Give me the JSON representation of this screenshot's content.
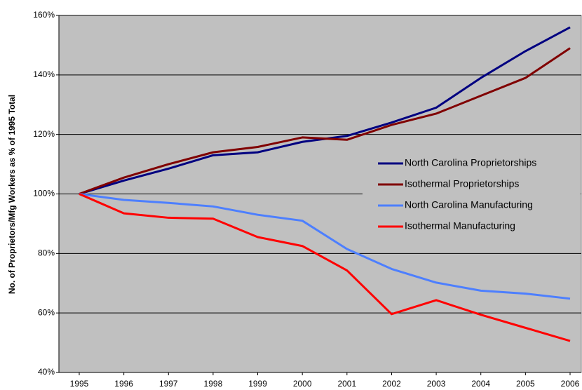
{
  "chart_data": {
    "type": "line",
    "y_label": "No. of Proprietors/Mfg Workers as % of 1995 Total",
    "categories": [
      "1995",
      "1996",
      "1997",
      "1998",
      "1999",
      "2000",
      "2001",
      "2002",
      "2003",
      "2004",
      "2005",
      "2006"
    ],
    "series": [
      {
        "name": "North Carolina Proprietorships",
        "color": "#000080",
        "values": [
          100,
          104.5,
          108.5,
          113,
          114,
          117.5,
          119.5,
          124,
          129,
          139,
          148,
          156
        ]
      },
      {
        "name": "Isothermal Proprietorships",
        "color": "#800000",
        "values": [
          100,
          105.5,
          110,
          114,
          115.8,
          119,
          118.2,
          123.2,
          127,
          133,
          139,
          149
        ]
      },
      {
        "name": "North Carolina Manufacturing",
        "color": "#4d7fff",
        "values": [
          100,
          98,
          97,
          95.8,
          93,
          91,
          81.5,
          74.8,
          70.2,
          67.5,
          66.5,
          64.8
        ]
      },
      {
        "name": "Isothermal Manufacturing",
        "color": "#ff0000",
        "values": [
          100,
          93.5,
          92,
          91.7,
          85.5,
          82.5,
          74.3,
          59.6,
          64.3,
          59.4,
          55,
          50.6
        ]
      }
    ],
    "ylim": [
      40,
      160
    ],
    "yticks": [
      {
        "value": 40,
        "label": "40%"
      },
      {
        "value": 60,
        "label": "60%"
      },
      {
        "value": 80,
        "label": "80%"
      },
      {
        "value": 100,
        "label": "100%"
      },
      {
        "value": 120,
        "label": "120%"
      },
      {
        "value": 140,
        "label": "140%"
      },
      {
        "value": 160,
        "label": "160%"
      }
    ],
    "grid": true,
    "legend": "right"
  }
}
